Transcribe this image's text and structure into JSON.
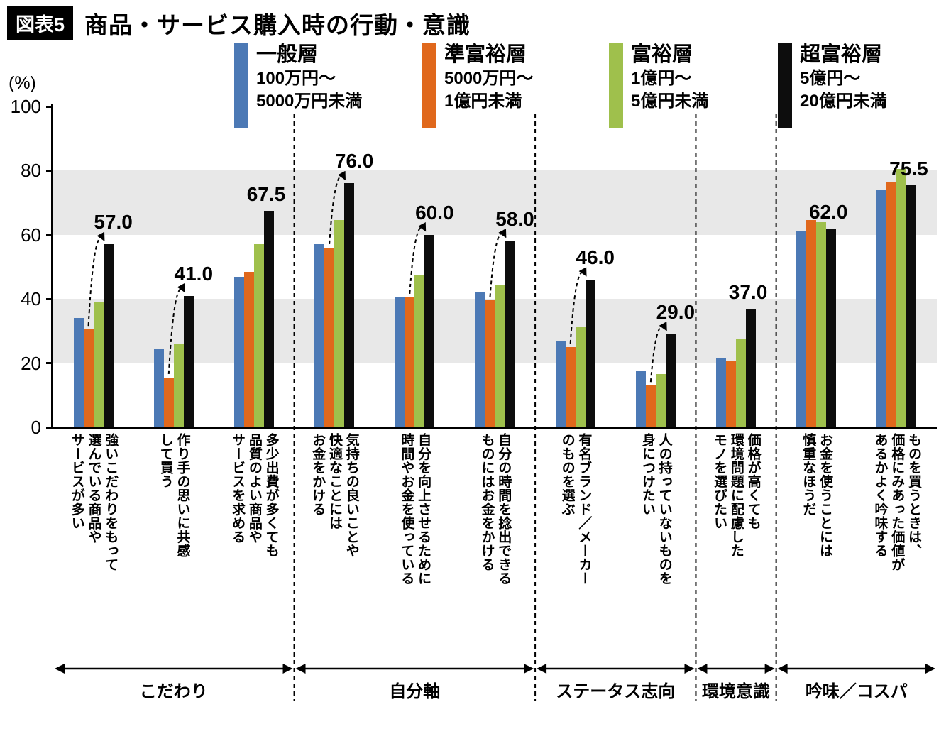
{
  "title": {
    "tag": "図表5",
    "text": "商品・サービス購入時の行動・意識"
  },
  "y_axis": {
    "unit": "(%)",
    "ticks": [
      0,
      20,
      40,
      60,
      80,
      100
    ]
  },
  "legend": {
    "items": [
      {
        "name": "一般層",
        "range1": "100万円～",
        "range2": "5000万円未満",
        "color": "#4c79b5"
      },
      {
        "name": "準富裕層",
        "range1": "5000万円～",
        "range2": "1億円未満",
        "color": "#e0681c"
      },
      {
        "name": "富裕層",
        "range1": "1億円～",
        "range2": "5億円未満",
        "color": "#9fc04c"
      },
      {
        "name": "超富裕層",
        "range1": "5億円～",
        "range2": "20億円未満",
        "color": "#0d0d0d"
      }
    ]
  },
  "chart_data": {
    "type": "bar",
    "title": "商品・サービス購入時の行動・意識",
    "ylabel": "(%)",
    "ylim": [
      0,
      100
    ],
    "yticks": [
      0,
      20,
      40,
      60,
      80,
      100
    ],
    "gray_bands": [
      [
        20,
        40
      ],
      [
        60,
        80
      ]
    ],
    "legend_position": "top",
    "series": [
      "一般層",
      "準富裕層",
      "富裕層",
      "超富裕層"
    ],
    "series_colors": [
      "#4c79b5",
      "#e0681c",
      "#9fc04c",
      "#0d0d0d"
    ],
    "categories": [
      {
        "label": "強いこだわりをもって\n選んでいる商品や\nサービスが多い",
        "values": [
          34.0,
          30.5,
          39.0,
          57.0
        ],
        "annotation": "57.0",
        "arrow": true
      },
      {
        "label": "作り手の思いに共感\nして買う",
        "values": [
          24.5,
          15.5,
          26.0,
          41.0
        ],
        "annotation": "41.0",
        "arrow": true
      },
      {
        "label": "多少出費が多くても\n品質のよい商品や\nサービスを求める",
        "values": [
          47.0,
          48.5,
          57.0,
          67.5
        ],
        "annotation": "67.5",
        "arrow": false
      },
      {
        "label": "気持ちの良いことや\n快適なことには\nお金をかける",
        "values": [
          57.0,
          56.0,
          64.5,
          76.0
        ],
        "annotation": "76.0",
        "arrow": true
      },
      {
        "label": "自分を向上させるために\n時間やお金を使っている",
        "values": [
          40.5,
          40.5,
          47.5,
          60.0
        ],
        "annotation": "60.0",
        "arrow": true
      },
      {
        "label": "自分の時間を捻出できる\nものにはお金をかける",
        "values": [
          42.0,
          39.5,
          44.5,
          58.0
        ],
        "annotation": "58.0",
        "arrow": true
      },
      {
        "label": "有名ブランド／メーカー\nのものを選ぶ",
        "values": [
          27.0,
          25.0,
          31.5,
          46.0
        ],
        "annotation": "46.0",
        "arrow": true
      },
      {
        "label": "人の持っていないものを\n身につけたい",
        "values": [
          17.5,
          13.0,
          16.5,
          29.0
        ],
        "annotation": "29.0",
        "arrow": true
      },
      {
        "label": "価格が高くても\n環境問題に配慮した\nモノを選びたい",
        "values": [
          21.5,
          20.5,
          27.5,
          37.0
        ],
        "annotation": "37.0",
        "arrow": false
      },
      {
        "label": "お金を使うことには\n慎重なほうだ",
        "values": [
          61.0,
          64.5,
          64.0,
          62.0
        ],
        "annotation": "62.0",
        "arrow": false
      },
      {
        "label": "ものを買うときは、\n価格にみあった価値が\nあるかよく吟味する",
        "values": [
          74.0,
          76.5,
          80.5,
          75.5
        ],
        "annotation": "75.5",
        "arrow": false
      }
    ],
    "sections": [
      {
        "label": "こだわり",
        "from": 0,
        "to": 2
      },
      {
        "label": "自分軸",
        "from": 3,
        "to": 5
      },
      {
        "label": "ステータス志向",
        "from": 6,
        "to": 7
      },
      {
        "label": "環境意識",
        "from": 8,
        "to": 8
      },
      {
        "label": "吟味／コスパ",
        "from": 9,
        "to": 10
      }
    ]
  }
}
